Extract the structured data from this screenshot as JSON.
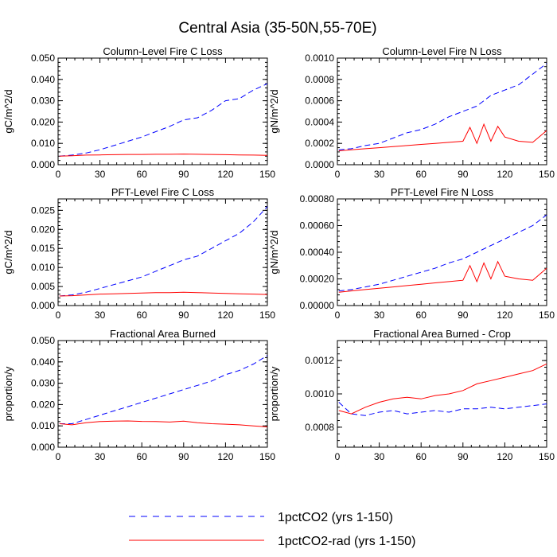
{
  "figure": {
    "title": "Central Asia (35-50N,55-70E)",
    "legend": [
      {
        "label": "1pctCO2 (yrs 1-150)",
        "color": "#0000ff",
        "dash": "dashed"
      },
      {
        "label": "1pctCO2-rad (yrs 1-150)",
        "color": "#ff0000",
        "dash": "solid"
      }
    ]
  },
  "chart_data": [
    {
      "type": "line",
      "title": "Column-Level Fire C Loss",
      "ylabel": "gC/m^2/d",
      "xlim": [
        0,
        150
      ],
      "ylim": [
        0,
        0.05
      ],
      "xticks": [
        0,
        30,
        60,
        90,
        120,
        150
      ],
      "xtick_labels": [
        "0",
        "30",
        "60",
        "90",
        "120",
        "150"
      ],
      "yticks": [
        0,
        0.01,
        0.02,
        0.03,
        0.04,
        0.05
      ],
      "ytick_labels": [
        "0.000",
        "0.010",
        "0.020",
        "0.030",
        "0.040",
        "0.050"
      ],
      "series": [
        {
          "color": "#0000ff",
          "dash": "dashed",
          "x": [
            1,
            10,
            20,
            30,
            40,
            50,
            60,
            70,
            80,
            90,
            100,
            110,
            120,
            130,
            140,
            150
          ],
          "y": [
            0.004,
            0.0045,
            0.0055,
            0.007,
            0.009,
            0.011,
            0.013,
            0.0155,
            0.018,
            0.021,
            0.022,
            0.0255,
            0.03,
            0.031,
            0.035,
            0.038
          ]
        },
        {
          "color": "#ff0000",
          "dash": "solid",
          "x": [
            1,
            10,
            20,
            30,
            40,
            50,
            60,
            70,
            80,
            90,
            100,
            110,
            120,
            130,
            140,
            150
          ],
          "y": [
            0.004,
            0.0042,
            0.0045,
            0.0046,
            0.0047,
            0.0048,
            0.0048,
            0.0049,
            0.0049,
            0.005,
            0.0049,
            0.0048,
            0.0047,
            0.0046,
            0.0045,
            0.0044
          ]
        }
      ]
    },
    {
      "type": "line",
      "title": "Column-Level Fire N Loss",
      "ylabel": "gN/m^2/d",
      "xlim": [
        0,
        150
      ],
      "ylim": [
        0,
        0.001
      ],
      "xticks": [
        0,
        30,
        60,
        90,
        120,
        150
      ],
      "xtick_labels": [
        "0",
        "30",
        "60",
        "90",
        "120",
        "150"
      ],
      "yticks": [
        0,
        0.0002,
        0.0004,
        0.0006,
        0.0008,
        0.001
      ],
      "ytick_labels": [
        "0.0000",
        "0.0002",
        "0.0004",
        "0.0006",
        "0.0008",
        "0.0010"
      ],
      "series": [
        {
          "color": "#0000ff",
          "dash": "dashed",
          "x": [
            1,
            10,
            20,
            30,
            40,
            50,
            60,
            70,
            80,
            90,
            100,
            110,
            120,
            130,
            140,
            150
          ],
          "y": [
            0.00014,
            0.00015,
            0.00018,
            0.0002,
            0.00025,
            0.0003,
            0.00033,
            0.00038,
            0.00045,
            0.0005,
            0.00055,
            0.00065,
            0.0007,
            0.00075,
            0.00085,
            0.00095
          ]
        },
        {
          "color": "#ff0000",
          "dash": "solid",
          "x": [
            1,
            10,
            20,
            30,
            40,
            50,
            60,
            70,
            80,
            90,
            95,
            100,
            105,
            110,
            115,
            120,
            130,
            140,
            150
          ],
          "y": [
            0.00013,
            0.00014,
            0.00015,
            0.00016,
            0.00017,
            0.00018,
            0.00019,
            0.0002,
            0.00021,
            0.00022,
            0.00035,
            0.0002,
            0.00038,
            0.00022,
            0.00036,
            0.00026,
            0.00022,
            0.00021,
            0.00032
          ]
        }
      ]
    },
    {
      "type": "line",
      "title": "PFT-Level Fire C Loss",
      "ylabel": "gC/m^2/d",
      "xlim": [
        0,
        150
      ],
      "ylim": [
        0,
        0.028
      ],
      "xticks": [
        0,
        30,
        60,
        90,
        120,
        150
      ],
      "xtick_labels": [
        "0",
        "30",
        "60",
        "90",
        "120",
        "150"
      ],
      "yticks": [
        0,
        0.005,
        0.01,
        0.015,
        0.02,
        0.025
      ],
      "ytick_labels": [
        "0.000",
        "0.005",
        "0.010",
        "0.015",
        "0.020",
        "0.025"
      ],
      "series": [
        {
          "color": "#0000ff",
          "dash": "dashed",
          "x": [
            1,
            10,
            20,
            30,
            40,
            50,
            60,
            70,
            80,
            90,
            100,
            110,
            120,
            130,
            140,
            150
          ],
          "y": [
            0.0025,
            0.0028,
            0.0035,
            0.0045,
            0.0055,
            0.0065,
            0.0075,
            0.009,
            0.0105,
            0.012,
            0.013,
            0.015,
            0.017,
            0.019,
            0.022,
            0.026
          ]
        },
        {
          "color": "#ff0000",
          "dash": "solid",
          "x": [
            1,
            10,
            20,
            30,
            40,
            50,
            60,
            70,
            80,
            90,
            100,
            110,
            120,
            130,
            140,
            150
          ],
          "y": [
            0.0025,
            0.0026,
            0.0028,
            0.003,
            0.0031,
            0.0032,
            0.0033,
            0.0034,
            0.0034,
            0.0035,
            0.0034,
            0.0033,
            0.0032,
            0.0031,
            0.003,
            0.0029
          ]
        }
      ]
    },
    {
      "type": "line",
      "title": "PFT-Level Fire N Loss",
      "ylabel": "gN/m^2/d",
      "xlim": [
        0,
        150
      ],
      "ylim": [
        0,
        0.0008
      ],
      "xticks": [
        0,
        30,
        60,
        90,
        120,
        150
      ],
      "xtick_labels": [
        "0",
        "30",
        "60",
        "90",
        "120",
        "150"
      ],
      "yticks": [
        0,
        0.0002,
        0.0004,
        0.0006,
        0.0008
      ],
      "ytick_labels": [
        "0.00000",
        "0.00020",
        "0.00040",
        "0.00060",
        "0.00080"
      ],
      "series": [
        {
          "color": "#0000ff",
          "dash": "dashed",
          "x": [
            1,
            10,
            20,
            30,
            40,
            50,
            60,
            70,
            80,
            90,
            100,
            110,
            120,
            130,
            140,
            150
          ],
          "y": [
            0.00011,
            0.00012,
            0.00014,
            0.00016,
            0.00019,
            0.00022,
            0.00025,
            0.00028,
            0.00032,
            0.00035,
            0.0004,
            0.00045,
            0.0005,
            0.00055,
            0.0006,
            0.00068
          ]
        },
        {
          "color": "#ff0000",
          "dash": "solid",
          "x": [
            1,
            10,
            20,
            30,
            40,
            50,
            60,
            70,
            80,
            90,
            95,
            100,
            105,
            110,
            115,
            120,
            130,
            140,
            150
          ],
          "y": [
            0.0001,
            0.00011,
            0.00012,
            0.00013,
            0.00014,
            0.00015,
            0.00016,
            0.00017,
            0.00018,
            0.00019,
            0.0003,
            0.00018,
            0.00032,
            0.0002,
            0.00033,
            0.00022,
            0.0002,
            0.00019,
            0.00028
          ]
        }
      ]
    },
    {
      "type": "line",
      "title": "Fractional Area Burned",
      "ylabel": "proportion/y",
      "xlim": [
        0,
        150
      ],
      "ylim": [
        0,
        0.05
      ],
      "xticks": [
        0,
        30,
        60,
        90,
        120,
        150
      ],
      "xtick_labels": [
        "0",
        "30",
        "60",
        "90",
        "120",
        "150"
      ],
      "yticks": [
        0,
        0.01,
        0.02,
        0.03,
        0.04,
        0.05
      ],
      "ytick_labels": [
        "0.000",
        "0.010",
        "0.020",
        "0.030",
        "0.040",
        "0.050"
      ],
      "series": [
        {
          "color": "#0000ff",
          "dash": "dashed",
          "x": [
            1,
            10,
            20,
            30,
            40,
            50,
            60,
            70,
            80,
            90,
            100,
            110,
            120,
            130,
            140,
            150
          ],
          "y": [
            0.011,
            0.011,
            0.013,
            0.015,
            0.017,
            0.019,
            0.021,
            0.023,
            0.025,
            0.027,
            0.029,
            0.031,
            0.034,
            0.036,
            0.039,
            0.043
          ]
        },
        {
          "color": "#ff0000",
          "dash": "solid",
          "x": [
            1,
            10,
            20,
            30,
            40,
            50,
            60,
            70,
            80,
            90,
            100,
            110,
            120,
            130,
            140,
            150
          ],
          "y": [
            0.011,
            0.0105,
            0.0115,
            0.012,
            0.0122,
            0.0123,
            0.0121,
            0.012,
            0.0118,
            0.0122,
            0.0115,
            0.011,
            0.0108,
            0.0105,
            0.01,
            0.0095
          ]
        }
      ]
    },
    {
      "type": "line",
      "title": "Fractional Area Burned - Crop",
      "ylabel": "proportion/y",
      "xlim": [
        0,
        150
      ],
      "ylim": [
        0.00068,
        0.00132
      ],
      "xticks": [
        0,
        30,
        60,
        90,
        120,
        150
      ],
      "xtick_labels": [
        "0",
        "30",
        "60",
        "90",
        "120",
        "150"
      ],
      "yticks": [
        0.0008,
        0.001,
        0.0012
      ],
      "ytick_labels": [
        "0.0008",
        "0.0010",
        "0.0012"
      ],
      "series": [
        {
          "color": "#0000ff",
          "dash": "dashed",
          "x": [
            1,
            10,
            20,
            30,
            40,
            50,
            60,
            70,
            80,
            90,
            100,
            110,
            120,
            130,
            140,
            150
          ],
          "y": [
            0.00095,
            0.00088,
            0.00087,
            0.00089,
            0.0009,
            0.00088,
            0.00089,
            0.0009,
            0.00089,
            0.00091,
            0.00091,
            0.00092,
            0.00091,
            0.00092,
            0.00093,
            0.00094
          ]
        },
        {
          "color": "#ff0000",
          "dash": "solid",
          "x": [
            1,
            10,
            20,
            30,
            40,
            50,
            60,
            70,
            80,
            90,
            100,
            110,
            120,
            130,
            140,
            150
          ],
          "y": [
            0.0009,
            0.00088,
            0.00092,
            0.00095,
            0.00097,
            0.00098,
            0.00097,
            0.00099,
            0.001,
            0.00102,
            0.00106,
            0.00108,
            0.0011,
            0.00112,
            0.00114,
            0.00118
          ]
        }
      ]
    }
  ]
}
